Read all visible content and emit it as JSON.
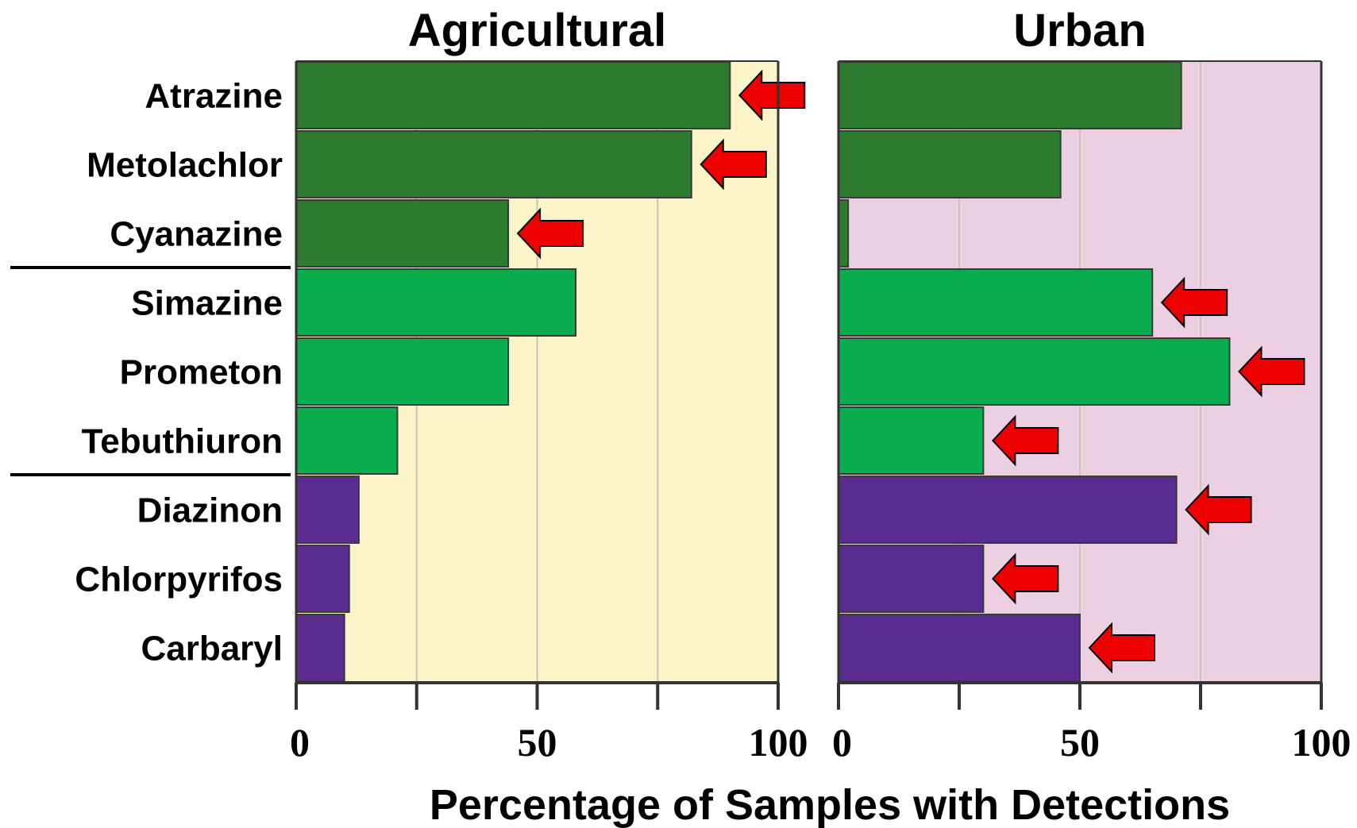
{
  "chart_data": {
    "type": "bar",
    "orientation": "horizontal",
    "xlabel": "Percentage of Samples with Detections",
    "xlim": [
      0,
      100
    ],
    "xticks": [
      0,
      50,
      100
    ],
    "categories": [
      "Atrazine",
      "Metolachlor",
      "Cyanazine",
      "Simazine",
      "Prometon",
      "Tebuthiuron",
      "Diazinon",
      "Chlorpyrifos",
      "Carbaryl"
    ],
    "groups": [
      {
        "categories": [
          "Atrazine",
          "Metolachlor",
          "Cyanazine"
        ],
        "color": "#2e7a2e"
      },
      {
        "categories": [
          "Simazine",
          "Prometon",
          "Tebuthiuron"
        ],
        "color": "#0aad4e"
      },
      {
        "categories": [
          "Diazinon",
          "Chlorpyrifos",
          "Carbaryl"
        ],
        "color": "#5b2c8f"
      }
    ],
    "highlight_color": "#ee0000",
    "panels": [
      {
        "title": "Agricultural",
        "background": "#faf4c8",
        "values": [
          90,
          82,
          44,
          58,
          44,
          21,
          13,
          11,
          10
        ],
        "highlighted": [
          "Atrazine",
          "Metolachlor",
          "Cyanazine"
        ]
      },
      {
        "title": "Urban",
        "background": "#ecd0e2",
        "values": [
          71,
          46,
          2,
          65,
          81,
          30,
          70,
          30,
          50
        ],
        "highlighted": [
          "Simazine",
          "Prometon",
          "Tebuthiuron",
          "Diazinon",
          "Chlorpyrifos",
          "Carbaryl"
        ]
      }
    ]
  }
}
